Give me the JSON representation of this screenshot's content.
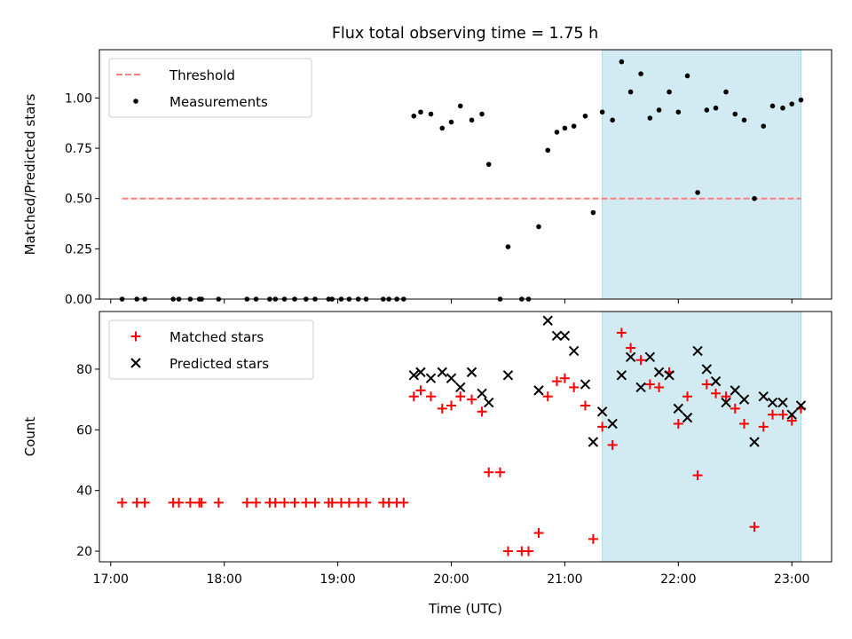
{
  "title": "Flux total observing time = 1.75 h",
  "colors": {
    "threshold": "#ff7f7f",
    "measurement": "#000000",
    "matched": "#ff0000",
    "predicted": "#000000",
    "highlight": "#add8e6"
  },
  "chart_data": [
    {
      "type": "scatter",
      "panel": "top",
      "ylabel": "Matched/Predicted stars",
      "xlim": [
        16.9,
        23.35
      ],
      "ylim": [
        0,
        1.24
      ],
      "yticks": [
        0.0,
        0.25,
        0.5,
        0.75,
        1.0
      ],
      "ytick_labels": [
        "0.00",
        "0.25",
        "0.50",
        "0.75",
        "1.00"
      ],
      "highlight_span": [
        21.33,
        23.08
      ],
      "legend_position": "upper-left",
      "legend": [
        {
          "label": "Threshold",
          "marker": "dashed-line"
        },
        {
          "label": "Measurements",
          "marker": "dot"
        }
      ],
      "threshold": {
        "name": "Threshold",
        "y": 0.5,
        "x": [
          17.1,
          23.08
        ]
      },
      "measurements": {
        "name": "Measurements",
        "x": [
          17.1,
          17.23,
          17.3,
          17.55,
          17.6,
          17.7,
          17.78,
          17.8,
          17.95,
          18.2,
          18.28,
          18.4,
          18.45,
          18.53,
          18.62,
          18.72,
          18.8,
          18.92,
          18.95,
          19.03,
          19.1,
          19.18,
          19.25,
          19.4,
          19.45,
          19.52,
          19.58,
          19.67,
          19.73,
          19.82,
          19.92,
          20.0,
          20.08,
          20.18,
          20.27,
          20.33,
          20.43,
          20.5,
          20.62,
          20.68,
          20.77,
          20.85,
          20.93,
          21.0,
          21.08,
          21.18,
          21.25,
          21.33,
          21.42,
          21.5,
          21.58,
          21.67,
          21.75,
          21.83,
          21.92,
          22.0,
          22.08,
          22.17,
          22.25,
          22.33,
          22.42,
          22.5,
          22.58,
          22.67,
          22.75,
          22.83,
          22.92,
          23.0,
          23.08
        ],
        "y": [
          0,
          0,
          0,
          0,
          0,
          0,
          0,
          0,
          0,
          0,
          0,
          0,
          0,
          0,
          0,
          0,
          0,
          0,
          0,
          0,
          0,
          0,
          0,
          0,
          0,
          0,
          0,
          0.91,
          0.93,
          0.92,
          0.85,
          0.88,
          0.96,
          0.89,
          0.92,
          0.67,
          0.0,
          0.26,
          0.0,
          0.0,
          0.36,
          0.74,
          0.83,
          0.85,
          0.86,
          0.91,
          0.43,
          0.93,
          0.89,
          1.18,
          1.03,
          1.12,
          0.9,
          0.94,
          1.03,
          0.93,
          1.11,
          0.53,
          0.94,
          0.95,
          1.03,
          0.92,
          0.89,
          0.5,
          0.86,
          0.96,
          0.95,
          0.97,
          0.99
        ]
      }
    },
    {
      "type": "scatter",
      "panel": "bottom",
      "xlabel": "Time (UTC)",
      "ylabel": "Count",
      "xlim": [
        16.9,
        23.35
      ],
      "ylim": [
        16.5,
        99
      ],
      "xticks": [
        17,
        18,
        19,
        20,
        21,
        22,
        23
      ],
      "xtick_labels": [
        "17:00",
        "18:00",
        "19:00",
        "20:00",
        "21:00",
        "22:00",
        "23:00"
      ],
      "yticks": [
        20,
        40,
        60,
        80
      ],
      "ytick_labels": [
        "20",
        "40",
        "60",
        "80"
      ],
      "highlight_span": [
        21.33,
        23.08
      ],
      "legend_position": "upper-left",
      "legend": [
        {
          "label": "Matched stars",
          "marker": "plus"
        },
        {
          "label": "Predicted stars",
          "marker": "x"
        }
      ],
      "matched": {
        "name": "Matched stars",
        "x": [
          17.1,
          17.23,
          17.3,
          17.55,
          17.6,
          17.7,
          17.78,
          17.8,
          17.95,
          18.2,
          18.28,
          18.4,
          18.45,
          18.53,
          18.62,
          18.72,
          18.8,
          18.92,
          18.95,
          19.03,
          19.1,
          19.18,
          19.25,
          19.4,
          19.45,
          19.52,
          19.58,
          19.67,
          19.73,
          19.82,
          19.92,
          20.0,
          20.08,
          20.18,
          20.27,
          20.33,
          20.43,
          20.5,
          20.62,
          20.68,
          20.77,
          20.85,
          20.93,
          21.0,
          21.08,
          21.18,
          21.25,
          21.33,
          21.42,
          21.5,
          21.58,
          21.67,
          21.75,
          21.83,
          21.92,
          22.0,
          22.08,
          22.17,
          22.25,
          22.33,
          22.42,
          22.5,
          22.58,
          22.67,
          22.75,
          22.83,
          22.92,
          23.0,
          23.08
        ],
        "y": [
          36,
          36,
          36,
          36,
          36,
          36,
          36,
          36,
          36,
          36,
          36,
          36,
          36,
          36,
          36,
          36,
          36,
          36,
          36,
          36,
          36,
          36,
          36,
          36,
          36,
          36,
          36,
          71,
          73,
          71,
          67,
          68,
          71,
          70,
          66,
          46,
          46,
          20,
          20,
          20,
          26,
          71,
          76,
          77,
          74,
          68,
          24,
          61,
          55,
          92,
          87,
          83,
          75,
          74,
          79,
          62,
          71,
          45,
          75,
          72,
          71,
          67,
          62,
          28,
          61,
          65,
          65,
          63,
          67
        ]
      },
      "predicted": {
        "name": "Predicted stars",
        "x": [
          19.67,
          19.73,
          19.82,
          19.92,
          20.0,
          20.08,
          20.18,
          20.27,
          20.33,
          20.5,
          20.77,
          20.85,
          20.93,
          21.0,
          21.08,
          21.18,
          21.25,
          21.33,
          21.42,
          21.5,
          21.58,
          21.67,
          21.75,
          21.83,
          21.92,
          22.0,
          22.08,
          22.17,
          22.25,
          22.33,
          22.42,
          22.5,
          22.58,
          22.67,
          22.75,
          22.83,
          22.92,
          23.0,
          23.08
        ],
        "y": [
          78,
          79,
          77,
          79,
          77,
          74,
          79,
          72,
          69,
          78,
          73,
          96,
          91,
          91,
          86,
          75,
          56,
          66,
          62,
          78,
          84,
          74,
          84,
          79,
          78,
          67,
          64,
          86,
          80,
          76,
          69,
          73,
          70,
          56,
          71,
          69,
          69,
          65,
          68
        ]
      }
    }
  ]
}
